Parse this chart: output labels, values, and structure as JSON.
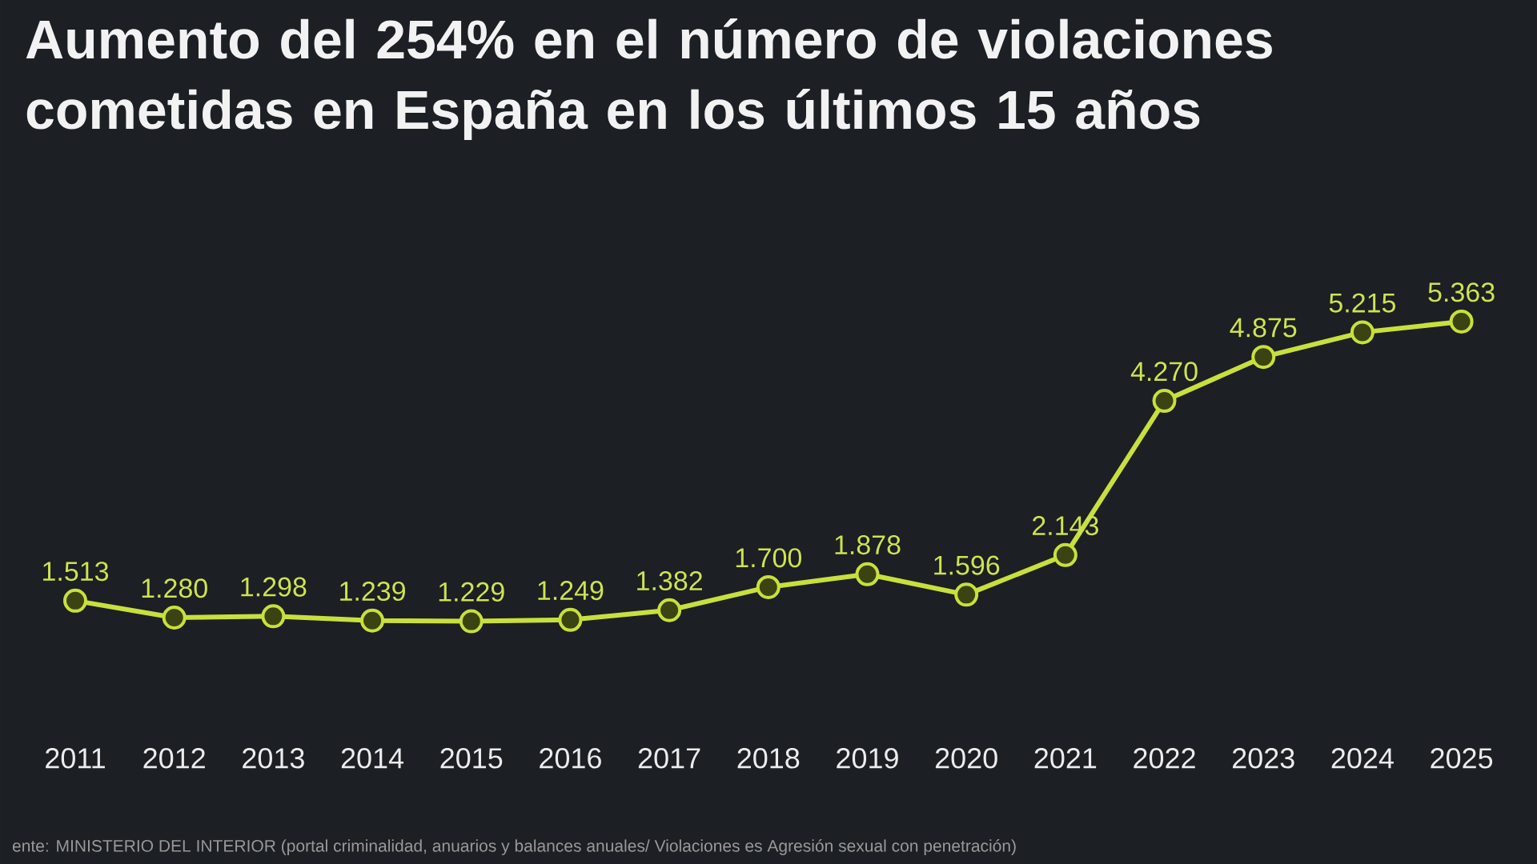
{
  "chart_data": {
    "type": "line",
    "title": "Aumento del 254% en el número de violaciones cometidas en España en los últimos 15 años",
    "categories": [
      "2011",
      "2012",
      "2013",
      "2014",
      "2015",
      "2016",
      "2017",
      "2018",
      "2019",
      "2020",
      "2021",
      "2022",
      "2023",
      "2024",
      "2025"
    ],
    "series": [
      {
        "color": "#c8e03c",
        "values": [
          1513,
          1280,
          1298,
          1239,
          1229,
          1249,
          1382,
          1700,
          1878,
          1596,
          2143,
          4270,
          4875,
          5215,
          5363
        ],
        "value_labels": [
          "1.513",
          "1.280",
          "1.298",
          "1.239",
          "1.229",
          "1.249",
          "1.382",
          "1.700",
          "1.878",
          "1.596",
          "2.143",
          "4.270",
          "4.875",
          "5.215",
          "5.363"
        ]
      }
    ],
    "marker": "circle",
    "line_style": "solid",
    "annotations": [
      "ente: MINISTERIO DEL INTERIOR (portal criminalidad, anuarios y balances anuales/ Violaciones es Agresión sexual con penetración)"
    ]
  }
}
